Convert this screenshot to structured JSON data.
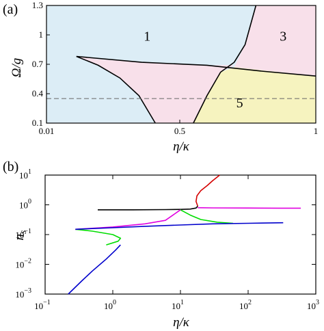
{
  "chart_data": [
    {
      "panel_label": "(a)",
      "type": "area",
      "xlabel": "η/κ",
      "ylabel": "Ω/g",
      "xlim": [
        0.01,
        1
      ],
      "ylim": [
        0.1,
        1.3
      ],
      "x_ticks": [
        {
          "value": 0.01,
          "label": "0.01"
        },
        {
          "value": 0.5,
          "label": "0.5"
        },
        {
          "value": 1,
          "label": "1"
        }
      ],
      "y_ticks": [
        {
          "value": 0.1,
          "label": "0.1"
        },
        {
          "value": 0.4,
          "label": "0.4"
        },
        {
          "value": 0.7,
          "label": "0.7"
        },
        {
          "value": 1,
          "label": "1"
        },
        {
          "value": 1.3,
          "label": "1.3"
        }
      ],
      "regions": [
        {
          "label": "1",
          "color": "#dcedf6",
          "label_at": [
            0.38,
            0.99
          ],
          "points": [
            [
              0.01,
              0.1
            ],
            [
              1,
              0.1
            ],
            [
              1,
              1.3
            ],
            [
              0.01,
              1.3
            ]
          ]
        },
        {
          "label": "",
          "color": "#f8e0ea",
          "label_at": null,
          "points": [
            [
              0.12,
              0.78
            ],
            [
              0.2,
              0.69
            ],
            [
              0.28,
              0.56
            ],
            [
              0.35,
              0.38
            ],
            [
              0.41,
              0.1
            ],
            [
              0.55,
              0.1
            ],
            [
              0.6,
              0.38
            ],
            [
              0.65,
              0.62
            ],
            [
              0.7,
              0.69
            ],
            [
              0.6,
              0.69
            ],
            [
              0.36,
              0.72
            ],
            [
              0.2,
              0.75
            ]
          ]
        },
        {
          "label": "3",
          "color": "#f8e0ea",
          "label_at": [
            0.88,
            0.99
          ],
          "points": [
            [
              0.78,
              1.3
            ],
            [
              1,
              1.3
            ],
            [
              1,
              0.58
            ],
            [
              0.7,
              0.67
            ],
            [
              0.74,
              0.9
            ]
          ]
        },
        {
          "label": "5",
          "color": "#f6f3bf",
          "label_at": [
            0.72,
            0.31
          ],
          "points": [
            [
              0.55,
              0.1
            ],
            [
              1,
              0.1
            ],
            [
              1,
              0.58
            ],
            [
              0.7,
              0.67
            ],
            [
              0.65,
              0.62
            ],
            [
              0.6,
              0.38
            ]
          ]
        }
      ],
      "boundaries": [
        {
          "name": "upper",
          "points": [
            [
              0.12,
              0.78
            ],
            [
              0.36,
              0.72
            ],
            [
              0.6,
              0.69
            ],
            [
              0.8,
              0.63
            ],
            [
              1,
              0.58
            ]
          ]
        },
        {
          "name": "left",
          "points": [
            [
              0.12,
              0.78
            ],
            [
              0.2,
              0.69
            ],
            [
              0.28,
              0.56
            ],
            [
              0.35,
              0.38
            ],
            [
              0.41,
              0.1
            ]
          ]
        },
        {
          "name": "right",
          "points": [
            [
              0.55,
              0.1
            ],
            [
              0.6,
              0.38
            ],
            [
              0.65,
              0.62
            ],
            [
              0.7,
              0.72
            ],
            [
              0.74,
              0.9
            ],
            [
              0.78,
              1.3
            ]
          ]
        }
      ],
      "reference_lines": [
        {
          "y": 0.35,
          "style": "dashed"
        }
      ]
    },
    {
      "panel_label": "(b)",
      "type": "line",
      "xlabel": "η/κ",
      "ylabel": "n_s",
      "x_scale": "log",
      "y_scale": "log",
      "xlim": [
        0.1,
        1000
      ],
      "ylim": [
        0.001,
        10
      ],
      "x_ticks": [
        {
          "value": 0.1,
          "base": "10",
          "exp": "−1"
        },
        {
          "value": 1,
          "base": "10",
          "exp": "0"
        },
        {
          "value": 10,
          "base": "10",
          "exp": "1"
        },
        {
          "value": 100,
          "base": "10",
          "exp": "2"
        },
        {
          "value": 1000,
          "base": "10",
          "exp": "3"
        }
      ],
      "y_ticks": [
        {
          "value": 0.001,
          "base": "10",
          "exp": "−3"
        },
        {
          "value": 0.01,
          "base": "10",
          "exp": "−2"
        },
        {
          "value": 0.1,
          "base": "10",
          "exp": "−1"
        },
        {
          "value": 1,
          "base": "10",
          "exp": "0"
        },
        {
          "value": 10,
          "base": "10",
          "exp": "1"
        }
      ],
      "series": [
        {
          "color": "#d40000",
          "x": [
            18,
            17,
            17.5,
            20,
            25,
            30,
            38
          ],
          "y": [
            0.9,
            1.3,
            2.0,
            3.0,
            4.5,
            6.5,
            10
          ]
        },
        {
          "color": "#000000",
          "x": [
            0.6,
            2,
            6,
            10,
            14,
            17,
            18
          ],
          "y": [
            0.68,
            0.68,
            0.69,
            0.7,
            0.72,
            0.78,
            0.9
          ]
        },
        {
          "color": "#e000e0",
          "x": [
            18,
            30,
            100,
            300,
            600
          ],
          "y": [
            0.8,
            0.79,
            0.78,
            0.77,
            0.77
          ]
        },
        {
          "color": "#00dd00",
          "x": [
            0.28,
            0.5,
            1.0,
            1.3,
            1.2,
            0.8
          ],
          "y": [
            0.15,
            0.13,
            0.1,
            0.075,
            0.06,
            0.045
          ]
        },
        {
          "color": "#00dd00",
          "x": [
            10,
            14,
            20,
            35,
            60
          ],
          "y": [
            0.68,
            0.45,
            0.32,
            0.26,
            0.24
          ]
        },
        {
          "color": "#e000e0",
          "x": [
            0.28,
            1,
            3,
            6,
            10
          ],
          "y": [
            0.15,
            0.18,
            0.23,
            0.3,
            0.68
          ]
        },
        {
          "color": "#0000cc",
          "x": [
            0.22,
            0.35,
            0.5,
            0.8,
            1.1,
            1.3
          ],
          "y": [
            0.001,
            0.0028,
            0.006,
            0.015,
            0.03,
            0.045
          ]
        },
        {
          "color": "#0000cc",
          "x": [
            0.28,
            1,
            3,
            10,
            30,
            100,
            330
          ],
          "y": [
            0.15,
            0.17,
            0.19,
            0.21,
            0.23,
            0.24,
            0.25
          ]
        }
      ]
    }
  ]
}
